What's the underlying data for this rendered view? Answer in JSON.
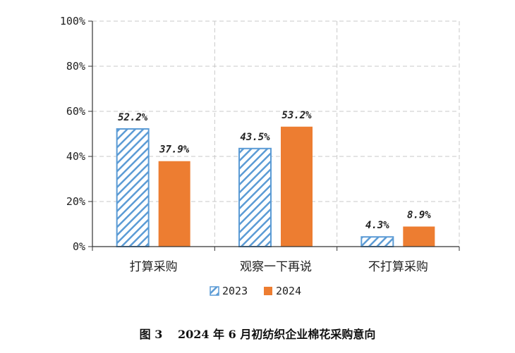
{
  "colors": {
    "series_2023": "#5b9bd5",
    "series_2024": "#ed7d31",
    "grid": "#c8c8c8",
    "axis": "#333333"
  },
  "chart_data": {
    "type": "bar",
    "categories": [
      "打算采购",
      "观察一下再说",
      "不打算采购"
    ],
    "series": [
      {
        "name": "2023",
        "values": [
          52.2,
          43.5,
          4.3
        ],
        "labels": [
          "52.2%",
          "43.5%",
          "4.3%"
        ],
        "pattern": "diagonal-hatch"
      },
      {
        "name": "2024",
        "values": [
          37.9,
          53.2,
          8.9
        ],
        "labels": [
          "37.9%",
          "53.2%",
          "8.9%"
        ],
        "pattern": "solid"
      }
    ],
    "y_ticks": [
      "0%",
      "20%",
      "40%",
      "60%",
      "80%",
      "100%"
    ],
    "ylim": [
      0,
      100
    ],
    "grid": true,
    "legend_position": "bottom",
    "caption": "图 3　 2024 年 6 月初纺织企业棉花采购意向"
  }
}
